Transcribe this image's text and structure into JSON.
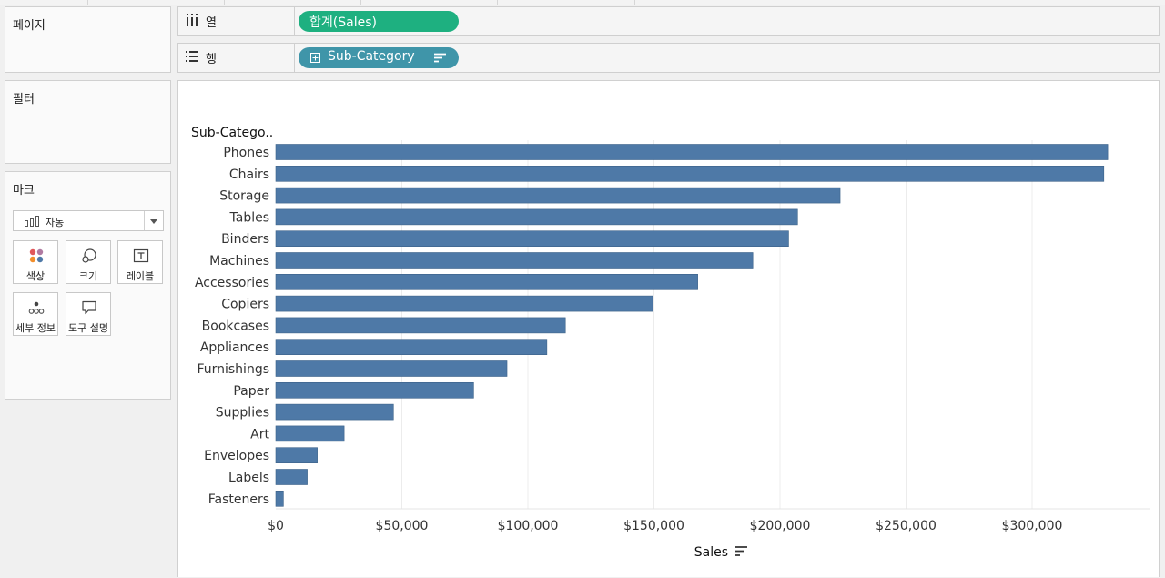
{
  "shelves": {
    "pages": {
      "title": "페이지"
    },
    "filters": {
      "title": "필터"
    },
    "columns": {
      "label": "열",
      "pill": "합계(Sales)"
    },
    "rows": {
      "label": "행",
      "pill": "Sub-Category"
    }
  },
  "marks": {
    "title": "마크",
    "type": "자동",
    "buttons": [
      {
        "label": "색상",
        "icon": "color-icon"
      },
      {
        "label": "크기",
        "icon": "size-icon"
      },
      {
        "label": "레이블",
        "icon": "label-icon"
      },
      {
        "label": "세부 정보",
        "icon": "detail-icon"
      },
      {
        "label": "도구 설명",
        "icon": "tooltip-icon"
      }
    ]
  },
  "colors": {
    "bar": "#4e79a7",
    "columns_pill": "#1eb080",
    "rows_pill": "#3f95a9"
  },
  "chart_data": {
    "type": "bar",
    "orientation": "horizontal",
    "row_header": "Sub-Catego..",
    "xlabel": "Sales",
    "categories": [
      "Phones",
      "Chairs",
      "Storage",
      "Tables",
      "Binders",
      "Machines",
      "Accessories",
      "Copiers",
      "Bookcases",
      "Appliances",
      "Furnishings",
      "Paper",
      "Supplies",
      "Art",
      "Envelopes",
      "Labels",
      "Fasteners"
    ],
    "values": [
      330007,
      328449,
      223844,
      206966,
      203413,
      189239,
      167380,
      149528,
      114880,
      107532,
      91705,
      78479,
      46674,
      27119,
      16476,
      12486,
      3024
    ],
    "xlim": [
      0,
      340000
    ],
    "xticks": [
      0,
      50000,
      100000,
      150000,
      200000,
      250000,
      300000
    ],
    "xtick_labels": [
      "$0",
      "$50,000",
      "$100,000",
      "$150,000",
      "$200,000",
      "$250,000",
      "$300,000"
    ],
    "grid": true
  }
}
